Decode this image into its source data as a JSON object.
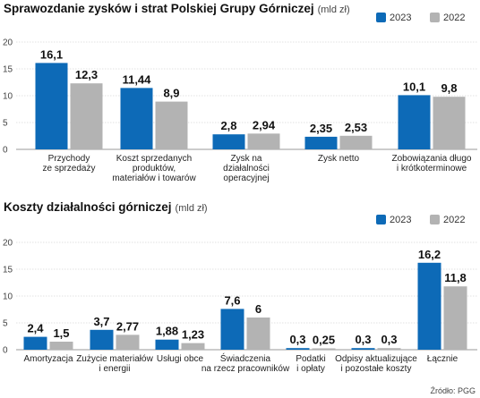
{
  "source": "Źródło: PGG",
  "colors": {
    "y2023": "#0d6ab7",
    "y2022": "#b3b3b3"
  },
  "chart_data": [
    {
      "type": "bar",
      "title": "Sprawozdanie zysków i strat Polskiej Grupy Górniczej",
      "unit": "(mld zł)",
      "ylim": [
        0,
        20
      ],
      "yticks": [
        "0",
        "5",
        "10",
        "15",
        "20"
      ],
      "grid": true,
      "legend": "top-right",
      "categories": [
        [
          "Przychody",
          "ze sprzedaży"
        ],
        [
          "Koszt sprzedanych",
          "produktów,",
          "materiałów i towarów"
        ],
        [
          "Zysk na",
          "działalności",
          "operacyjnej"
        ],
        [
          "Zysk netto"
        ],
        [
          "Zobowiązania długo",
          "i krótkoterminowe"
        ]
      ],
      "series": [
        {
          "name": "2023",
          "values": [
            16.1,
            11.44,
            2.8,
            2.35,
            10.1
          ],
          "labels": [
            "16,1",
            "11,44",
            "2,8",
            "2,35",
            "10,1"
          ]
        },
        {
          "name": "2022",
          "values": [
            12.3,
            8.9,
            2.94,
            2.53,
            9.8
          ],
          "labels": [
            "12,3",
            "8,9",
            "2,94",
            "2,53",
            "9,8"
          ]
        }
      ]
    },
    {
      "type": "bar",
      "title": "Koszty działalności górniczej",
      "unit": "(mld zł)",
      "ylim": [
        0,
        20
      ],
      "yticks": [
        "0",
        "5",
        "10",
        "15",
        "20"
      ],
      "grid": true,
      "legend": "top-right",
      "categories": [
        [
          "Amortyzacja"
        ],
        [
          "Zużycie materiałów",
          "i energii"
        ],
        [
          "Usługi obce"
        ],
        [
          "Świadczenia",
          "na rzecz pracowników"
        ],
        [
          "Podatki",
          "i opłaty"
        ],
        [
          "Odpisy aktualizujące",
          "i pozostałe koszty"
        ],
        [
          "Łącznie"
        ]
      ],
      "series": [
        {
          "name": "2023",
          "values": [
            2.4,
            3.7,
            1.88,
            7.6,
            0.3,
            0.3,
            16.2
          ],
          "labels": [
            "2,4",
            "3,7",
            "1,88",
            "7,6",
            "0,3",
            "0,3",
            "16,2"
          ]
        },
        {
          "name": "2022",
          "values": [
            1.5,
            2.77,
            1.23,
            6,
            0.25,
            0.3,
            11.8
          ],
          "labels": [
            "1,5",
            "2,77",
            "1,23",
            "6",
            "0,25",
            "0,3",
            "11,8"
          ]
        }
      ]
    }
  ]
}
